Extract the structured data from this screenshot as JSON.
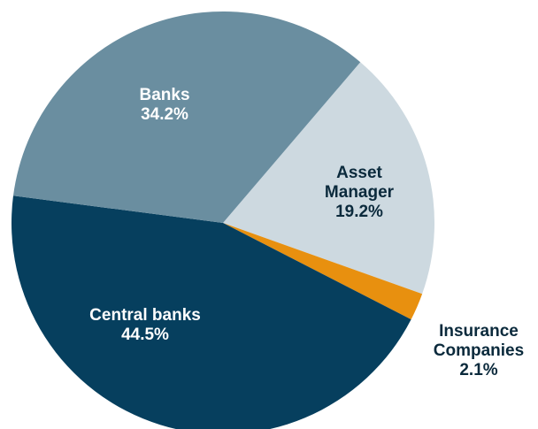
{
  "chart_data": {
    "type": "pie",
    "slices": [
      {
        "label_lines": [
          "Asset",
          "Manager"
        ],
        "value_text": "19.2%",
        "value": 19.2,
        "color": "#cdd9e0",
        "text_color": "#0b2a3c",
        "label_position": "inside"
      },
      {
        "label_lines": [
          "Insurance",
          "Companies"
        ],
        "value_text": "2.1%",
        "value": 2.1,
        "color": "#e8900f",
        "text_color": "#0b2a3c",
        "label_position": "outside"
      },
      {
        "label_lines": [
          "Central banks"
        ],
        "value_text": "44.5%",
        "value": 44.5,
        "color": "#063f5e",
        "text_color": "#ffffff",
        "label_position": "inside"
      },
      {
        "label_lines": [
          "Banks"
        ],
        "value_text": "34.2%",
        "value": 34.2,
        "color": "#6a8ea0",
        "text_color": "#ffffff",
        "label_position": "inside"
      }
    ]
  }
}
